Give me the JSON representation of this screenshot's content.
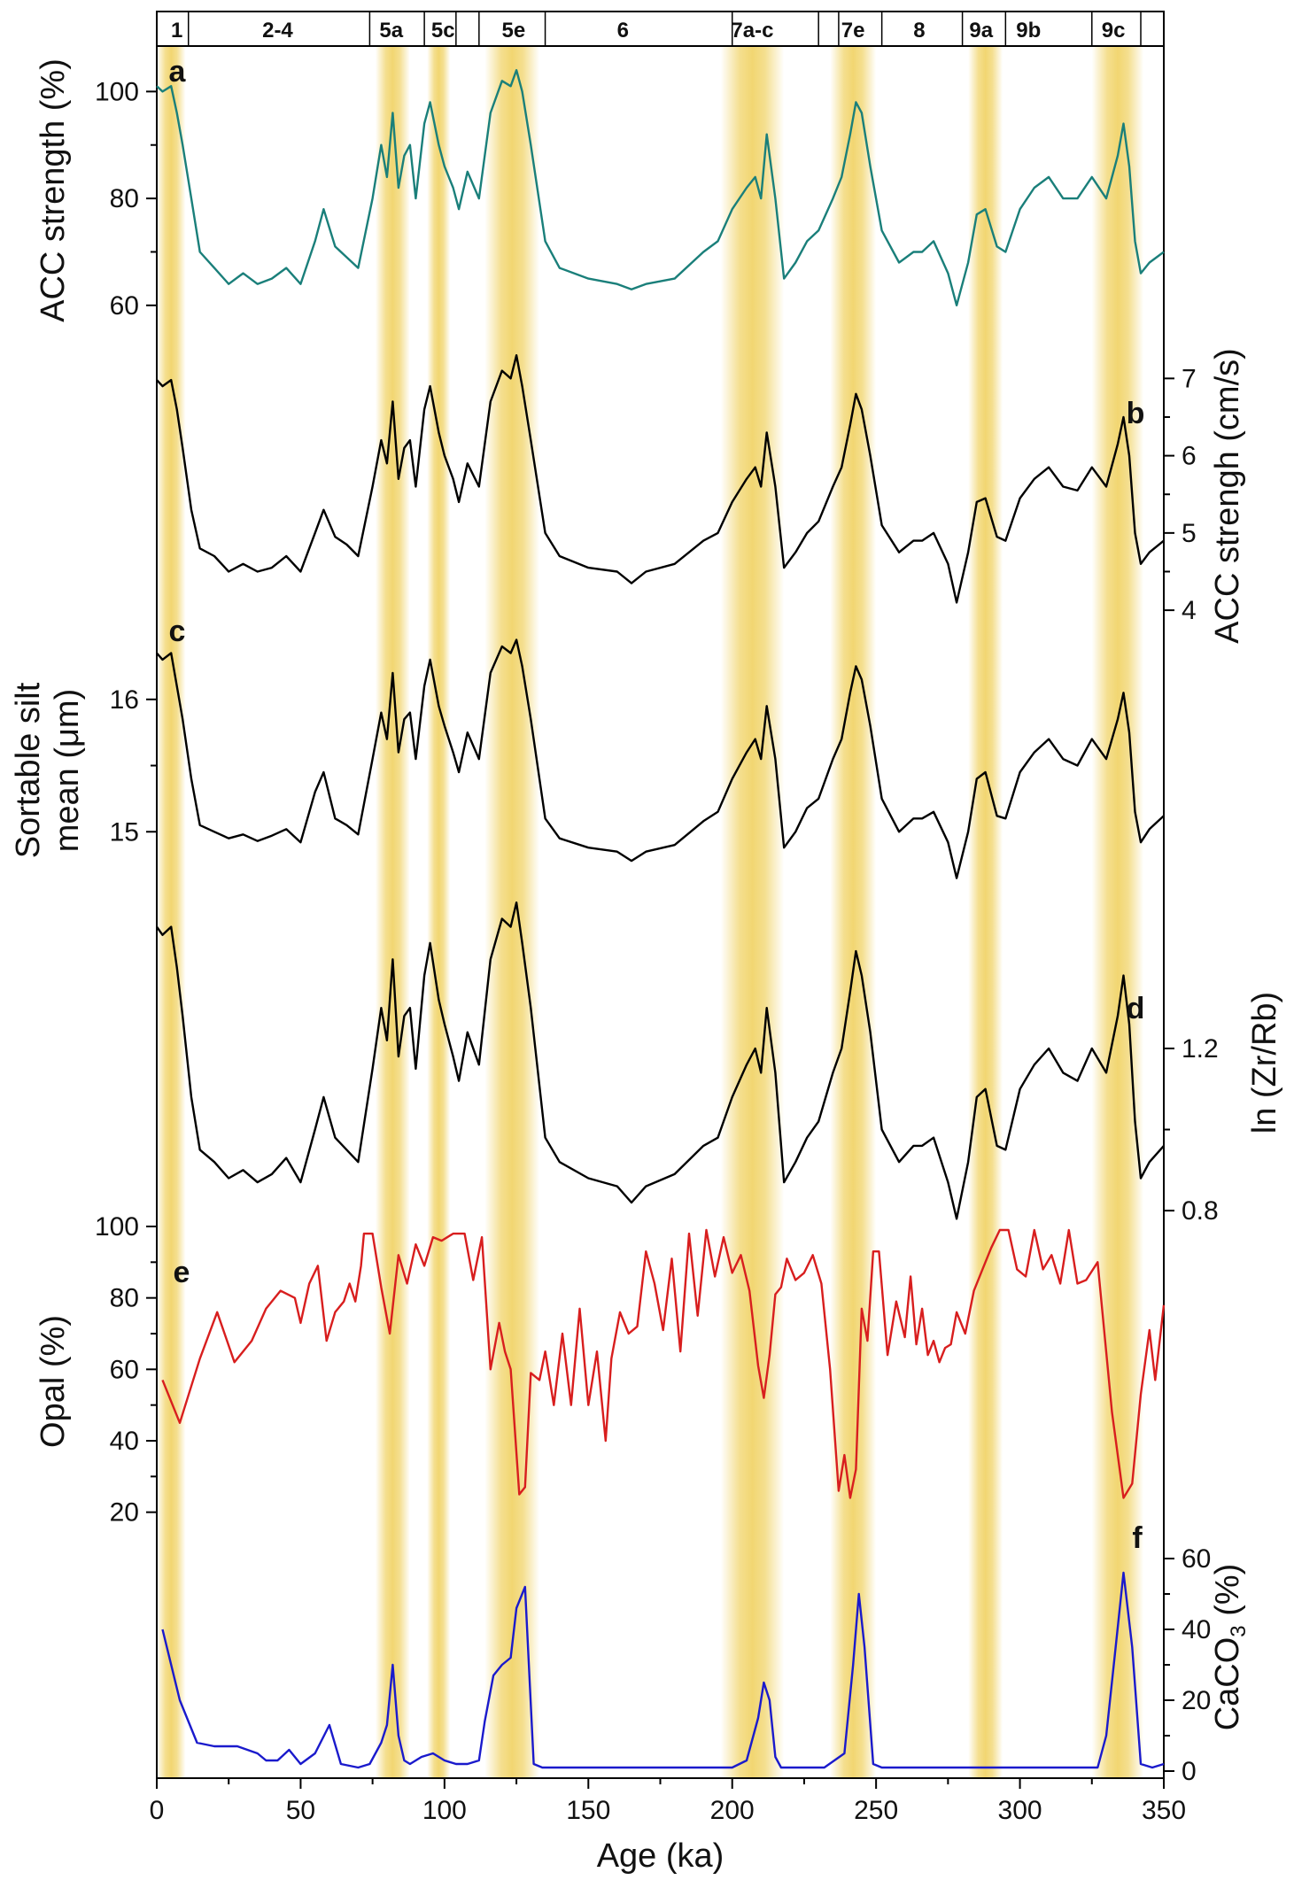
{
  "chart_data": {
    "type": "line",
    "x_axis": {
      "label": "Age (ka)",
      "range": [
        0,
        350
      ],
      "ticks": [
        0,
        50,
        100,
        150,
        200,
        250,
        300,
        350
      ]
    },
    "stage_bar": {
      "labels": [
        "1",
        "2-4",
        "5a",
        "5c",
        "5e",
        "6",
        "7a-c",
        "7e",
        "8",
        "9a",
        "9b",
        "9c"
      ],
      "centers": [
        7,
        42,
        81.5,
        99.5,
        124,
        162,
        207,
        242,
        265,
        286.5,
        303,
        332.5
      ],
      "boundaries": [
        0,
        11,
        74,
        93,
        104,
        112,
        135,
        200,
        230,
        237,
        252,
        280,
        295,
        325,
        342,
        350
      ]
    },
    "interglacial_bands": [
      [
        0,
        10
      ],
      [
        76,
        88
      ],
      [
        94,
        102
      ],
      [
        114,
        133
      ],
      [
        196,
        218
      ],
      [
        234,
        250
      ],
      [
        282,
        294
      ],
      [
        325,
        343
      ]
    ],
    "panels": [
      {
        "letter": "a",
        "ylabel": "ACC strength (%)",
        "color": "#1a7f7a",
        "y_range": [
          55,
          110
        ],
        "ticks": [
          60,
          80,
          100
        ],
        "x": [
          0,
          2,
          5,
          7,
          9,
          12,
          15,
          20,
          25,
          30,
          35,
          40,
          45,
          50,
          55,
          58,
          62,
          66,
          70,
          75,
          78,
          80,
          82,
          84,
          86,
          88,
          90,
          93,
          95,
          98,
          100,
          103,
          105,
          108,
          112,
          116,
          120,
          123,
          125,
          127,
          130,
          135,
          140,
          150,
          160,
          165,
          170,
          180,
          190,
          195,
          200,
          205,
          208,
          210,
          212,
          215,
          218,
          222,
          226,
          230,
          235,
          238,
          241,
          243,
          245,
          248,
          252,
          258,
          263,
          266,
          270,
          275,
          278,
          282,
          285,
          288,
          292,
          295,
          300,
          305,
          310,
          315,
          320,
          325,
          330,
          334,
          336,
          338,
          340,
          342,
          345,
          350
        ],
        "y": [
          101,
          100,
          101,
          96,
          90,
          80,
          70,
          67,
          64,
          66,
          64,
          65,
          67,
          64,
          72,
          78,
          71,
          69,
          67,
          80,
          90,
          84,
          96,
          82,
          88,
          90,
          80,
          94,
          98,
          90,
          86,
          82,
          78,
          85,
          80,
          96,
          102,
          101,
          104,
          100,
          90,
          72,
          67,
          65,
          64,
          63,
          64,
          65,
          70,
          72,
          78,
          82,
          84,
          80,
          92,
          80,
          65,
          68,
          72,
          74,
          80,
          84,
          92,
          98,
          96,
          86,
          74,
          68,
          70,
          70,
          72,
          66,
          60,
          68,
          77,
          78,
          71,
          70,
          78,
          82,
          84,
          80,
          80,
          84,
          80,
          88,
          94,
          86,
          72,
          66,
          68,
          70
        ]
      },
      {
        "letter": "b",
        "ylabel": "ACC strengh (cm/s)",
        "color": "#000000",
        "y_range": [
          3.6,
          7.6
        ],
        "ticks": [
          4,
          5,
          6,
          7
        ],
        "x": [
          0,
          2,
          5,
          7,
          9,
          12,
          15,
          20,
          25,
          30,
          35,
          40,
          45,
          50,
          55,
          58,
          62,
          66,
          70,
          75,
          78,
          80,
          82,
          84,
          86,
          88,
          90,
          93,
          95,
          98,
          100,
          103,
          105,
          108,
          112,
          116,
          120,
          123,
          125,
          127,
          130,
          135,
          140,
          150,
          160,
          165,
          170,
          180,
          190,
          195,
          200,
          205,
          208,
          210,
          212,
          215,
          218,
          222,
          226,
          230,
          235,
          238,
          241,
          243,
          245,
          248,
          252,
          258,
          263,
          266,
          270,
          275,
          278,
          282,
          285,
          288,
          292,
          295,
          300,
          305,
          310,
          315,
          320,
          325,
          330,
          334,
          336,
          338,
          340,
          342,
          345,
          350
        ],
        "y": [
          6.98,
          6.9,
          6.98,
          6.6,
          6.1,
          5.3,
          4.8,
          4.7,
          4.5,
          4.6,
          4.5,
          4.55,
          4.7,
          4.5,
          5.0,
          5.3,
          4.95,
          4.85,
          4.7,
          5.6,
          6.2,
          5.9,
          6.7,
          5.7,
          6.1,
          6.2,
          5.6,
          6.6,
          6.9,
          6.3,
          6.0,
          5.7,
          5.4,
          5.9,
          5.6,
          6.7,
          7.1,
          7.0,
          7.3,
          6.9,
          6.2,
          5.0,
          4.7,
          4.55,
          4.5,
          4.35,
          4.5,
          4.6,
          4.9,
          5.0,
          5.4,
          5.7,
          5.85,
          5.6,
          6.3,
          5.6,
          4.55,
          4.75,
          5.0,
          5.15,
          5.6,
          5.85,
          6.4,
          6.8,
          6.6,
          6.0,
          5.1,
          4.75,
          4.9,
          4.9,
          5.0,
          4.6,
          4.1,
          4.75,
          5.4,
          5.45,
          4.95,
          4.9,
          5.45,
          5.7,
          5.85,
          5.6,
          5.55,
          5.85,
          5.6,
          6.15,
          6.5,
          6.0,
          5.0,
          4.6,
          4.75,
          4.9
        ]
      },
      {
        "letter": "c",
        "ylabel": "Sortable silt mean (μm)",
        "color": "#000000",
        "y_range": [
          14.5,
          16.4
        ],
        "ticks": [
          15,
          16
        ],
        "x": [
          0,
          2,
          5,
          7,
          9,
          12,
          15,
          20,
          25,
          30,
          35,
          40,
          45,
          50,
          55,
          58,
          62,
          66,
          70,
          75,
          78,
          80,
          82,
          84,
          86,
          88,
          90,
          93,
          95,
          98,
          100,
          103,
          105,
          108,
          112,
          116,
          120,
          123,
          125,
          127,
          130,
          135,
          140,
          150,
          160,
          165,
          170,
          180,
          190,
          195,
          200,
          205,
          208,
          210,
          212,
          215,
          218,
          222,
          226,
          230,
          235,
          238,
          241,
          243,
          245,
          248,
          252,
          258,
          263,
          266,
          270,
          275,
          278,
          282,
          285,
          288,
          292,
          295,
          300,
          305,
          310,
          315,
          320,
          325,
          330,
          334,
          336,
          338,
          340,
          342,
          345,
          350
        ],
        "y": [
          16.35,
          16.3,
          16.35,
          16.1,
          15.85,
          15.4,
          15.05,
          15.0,
          14.95,
          14.98,
          14.93,
          14.97,
          15.02,
          14.92,
          15.3,
          15.45,
          15.1,
          15.05,
          14.98,
          15.55,
          15.9,
          15.7,
          16.2,
          15.6,
          15.85,
          15.9,
          15.55,
          16.1,
          16.3,
          15.95,
          15.8,
          15.6,
          15.45,
          15.75,
          15.55,
          16.2,
          16.4,
          16.35,
          16.45,
          16.25,
          15.85,
          15.1,
          14.95,
          14.88,
          14.85,
          14.78,
          14.85,
          14.9,
          15.08,
          15.15,
          15.4,
          15.6,
          15.7,
          15.55,
          15.95,
          15.55,
          14.88,
          15.0,
          15.18,
          15.25,
          15.55,
          15.7,
          16.05,
          16.25,
          16.15,
          15.8,
          15.25,
          15.0,
          15.1,
          15.1,
          15.15,
          14.92,
          14.65,
          15.0,
          15.4,
          15.45,
          15.12,
          15.1,
          15.45,
          15.6,
          15.7,
          15.55,
          15.5,
          15.7,
          15.55,
          15.85,
          16.05,
          15.75,
          15.15,
          14.92,
          15.02,
          15.12
        ]
      },
      {
        "letter": "d",
        "ylabel": "ln (Zr/Rb)",
        "color": "#000000",
        "y_range": [
          0.75,
          1.58
        ],
        "ticks": [
          0.8,
          1.2
        ],
        "x": [
          0,
          2,
          5,
          7,
          9,
          12,
          15,
          20,
          25,
          30,
          35,
          40,
          45,
          50,
          55,
          58,
          62,
          66,
          70,
          75,
          78,
          80,
          82,
          84,
          86,
          88,
          90,
          93,
          95,
          98,
          100,
          103,
          105,
          108,
          112,
          116,
          120,
          123,
          125,
          127,
          130,
          135,
          140,
          150,
          160,
          165,
          170,
          180,
          190,
          195,
          200,
          205,
          208,
          210,
          212,
          215,
          218,
          222,
          226,
          230,
          235,
          238,
          241,
          243,
          245,
          248,
          252,
          258,
          263,
          266,
          270,
          275,
          278,
          282,
          285,
          288,
          292,
          295,
          300,
          305,
          310,
          315,
          320,
          325,
          330,
          334,
          336,
          338,
          340,
          342,
          345,
          350
        ],
        "y": [
          1.5,
          1.48,
          1.5,
          1.4,
          1.28,
          1.08,
          0.95,
          0.92,
          0.88,
          0.9,
          0.87,
          0.89,
          0.93,
          0.87,
          1.0,
          1.08,
          0.98,
          0.95,
          0.92,
          1.15,
          1.3,
          1.22,
          1.42,
          1.18,
          1.28,
          1.3,
          1.15,
          1.38,
          1.46,
          1.32,
          1.26,
          1.18,
          1.12,
          1.24,
          1.16,
          1.42,
          1.52,
          1.5,
          1.56,
          1.46,
          1.3,
          0.98,
          0.92,
          0.88,
          0.86,
          0.82,
          0.86,
          0.89,
          0.96,
          0.98,
          1.08,
          1.16,
          1.2,
          1.14,
          1.3,
          1.14,
          0.87,
          0.92,
          0.98,
          1.02,
          1.14,
          1.2,
          1.34,
          1.44,
          1.38,
          1.24,
          1.0,
          0.92,
          0.96,
          0.96,
          0.98,
          0.87,
          0.78,
          0.92,
          1.08,
          1.1,
          0.96,
          0.95,
          1.1,
          1.16,
          1.2,
          1.14,
          1.12,
          1.2,
          1.14,
          1.28,
          1.38,
          1.26,
          1.02,
          0.88,
          0.92,
          0.96
        ]
      },
      {
        "letter": "e",
        "ylabel": "Opal (%)",
        "color": "#d81e1e",
        "y_range": [
          10,
          100
        ],
        "ticks": [
          20,
          40,
          60,
          80,
          100
        ],
        "x": [
          2,
          8,
          15,
          21,
          27,
          33,
          38,
          43,
          48,
          50,
          53,
          56,
          59,
          62,
          65,
          67,
          69,
          71,
          72,
          73,
          75,
          78,
          81,
          84,
          87,
          90,
          93,
          96,
          99,
          103,
          107,
          110,
          113,
          116,
          119,
          121,
          123,
          126,
          128,
          130,
          133,
          135,
          138,
          141,
          144,
          147,
          150,
          153,
          156,
          158,
          161,
          164,
          167,
          170,
          173,
          176,
          179,
          182,
          185,
          188,
          191,
          194,
          197,
          200,
          203,
          206,
          209,
          211,
          213,
          215,
          217,
          219,
          222,
          225,
          228,
          231,
          234,
          237,
          239,
          241,
          243,
          245,
          247,
          249,
          251,
          254,
          257,
          260,
          262,
          264,
          266,
          268,
          270,
          272,
          274,
          276,
          278,
          281,
          284,
          287,
          290,
          293,
          296,
          299,
          302,
          305,
          308,
          311,
          314,
          317,
          320,
          323,
          327,
          332,
          336,
          339,
          342,
          345,
          347,
          350
        ],
        "y": [
          57,
          45,
          63,
          76,
          62,
          68,
          77,
          82,
          80,
          73,
          84,
          89,
          68,
          76,
          79,
          84,
          79,
          89,
          98,
          98,
          98,
          83,
          70,
          92,
          84,
          95,
          89,
          97,
          96,
          98,
          98,
          85,
          97,
          60,
          73,
          65,
          60,
          25,
          27,
          59,
          57,
          65,
          50,
          70,
          50,
          77,
          50,
          65,
          40,
          63,
          76,
          70,
          72,
          93,
          84,
          71,
          91,
          65,
          98,
          75,
          99,
          86,
          97,
          87,
          92,
          82,
          61,
          52,
          64,
          81,
          83,
          91,
          85,
          87,
          92,
          84,
          60,
          26,
          36,
          24,
          32,
          77,
          68,
          93,
          93,
          64,
          79,
          69,
          86,
          67,
          77,
          64,
          68,
          62,
          66,
          67,
          76,
          70,
          82,
          88,
          94,
          99,
          99,
          88,
          86,
          99,
          88,
          92,
          84,
          99,
          84,
          85,
          90,
          48,
          24,
          28,
          53,
          71,
          57,
          78
        ]
      },
      {
        "letter": "f",
        "ylabel": "CaCO3 (%)",
        "color": "#1a1acc",
        "y_range": [
          0,
          70
        ],
        "ticks": [
          0,
          20,
          40,
          60
        ],
        "x": [
          2,
          8,
          14,
          20,
          28,
          35,
          38,
          42,
          46,
          50,
          55,
          60,
          64,
          70,
          74,
          78,
          80,
          82,
          84,
          86,
          88,
          92,
          96,
          100,
          104,
          108,
          112,
          114,
          117,
          120,
          123,
          125,
          128,
          131,
          134,
          140,
          150,
          160,
          170,
          180,
          190,
          200,
          205,
          209,
          211,
          213,
          215,
          217,
          219,
          225,
          232,
          239,
          242,
          244,
          246,
          249,
          252,
          258,
          265,
          272,
          280,
          290,
          300,
          310,
          320,
          327,
          330,
          333,
          336,
          339,
          342,
          346,
          350
        ],
        "y": [
          40,
          20,
          8,
          7,
          7,
          5,
          3,
          3,
          6,
          2,
          5,
          13,
          2,
          1,
          2,
          8,
          13,
          30,
          10,
          3,
          2,
          4,
          5,
          3,
          2,
          2,
          3,
          14,
          27,
          30,
          32,
          46,
          52,
          2,
          1,
          1,
          1,
          1,
          1,
          1,
          1,
          1,
          3,
          15,
          25,
          20,
          4,
          1,
          1,
          1,
          1,
          5,
          30,
          50,
          35,
          2,
          1,
          1,
          1,
          1,
          1,
          1,
          1,
          1,
          1,
          1,
          10,
          33,
          56,
          35,
          2,
          1,
          2
        ]
      }
    ]
  }
}
